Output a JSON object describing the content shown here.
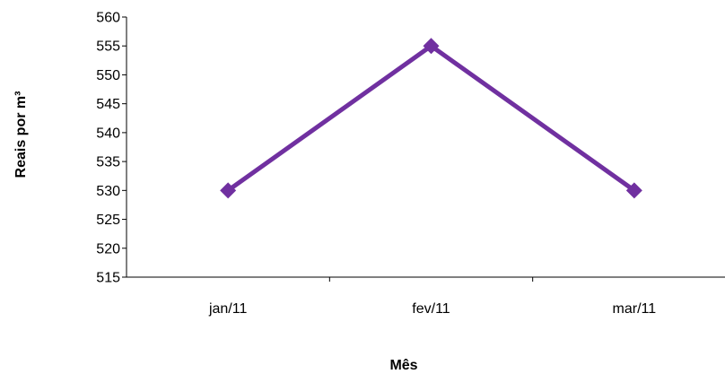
{
  "chart_data": {
    "type": "line",
    "title": "",
    "xlabel": "Mês",
    "ylabel": "Reais por m³",
    "categories": [
      "jan/11",
      "fev/11",
      "mar/11"
    ],
    "series": [
      {
        "values": [
          530,
          555,
          530
        ],
        "color": "#7030A0",
        "marker": "diamond"
      }
    ],
    "ylim": [
      515,
      560
    ],
    "ytick_step": 5,
    "grid": false,
    "legend": "none"
  }
}
